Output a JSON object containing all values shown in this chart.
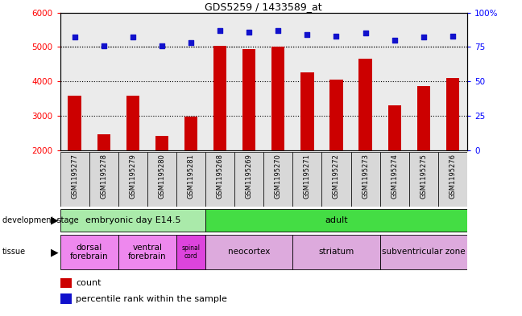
{
  "title": "GDS5259 / 1433589_at",
  "samples": [
    "GSM1195277",
    "GSM1195278",
    "GSM1195279",
    "GSM1195280",
    "GSM1195281",
    "GSM1195268",
    "GSM1195269",
    "GSM1195270",
    "GSM1195271",
    "GSM1195272",
    "GSM1195273",
    "GSM1195274",
    "GSM1195275",
    "GSM1195276"
  ],
  "counts": [
    3580,
    2470,
    3580,
    2420,
    2980,
    5040,
    4940,
    5010,
    4260,
    4060,
    4650,
    3310,
    3870,
    4090
  ],
  "percentiles": [
    82,
    76,
    82,
    76,
    78,
    87,
    86,
    87,
    84,
    83,
    85,
    80,
    82,
    83
  ],
  "bar_color": "#cc0000",
  "dot_color": "#1111cc",
  "ylim_left": [
    2000,
    6000
  ],
  "ylim_right": [
    0,
    100
  ],
  "yticks_left": [
    2000,
    3000,
    4000,
    5000,
    6000
  ],
  "yticks_right": [
    0,
    25,
    50,
    75,
    100
  ],
  "grid_dotted_values": [
    3000,
    4000,
    5000
  ],
  "development_stage_groups": [
    {
      "label": "embryonic day E14.5",
      "start": 0,
      "end": 4,
      "color": "#aaeaaa"
    },
    {
      "label": "adult",
      "start": 5,
      "end": 13,
      "color": "#44dd44"
    }
  ],
  "tissue_groups": [
    {
      "label": "dorsal\nforebrain",
      "start": 0,
      "end": 1,
      "color": "#ee88ee"
    },
    {
      "label": "ventral\nforebrain",
      "start": 2,
      "end": 3,
      "color": "#ee88ee"
    },
    {
      "label": "spinal\ncord",
      "start": 4,
      "end": 4,
      "color": "#dd44dd"
    },
    {
      "label": "neocortex",
      "start": 5,
      "end": 7,
      "color": "#ddaadd"
    },
    {
      "label": "striatum",
      "start": 8,
      "end": 10,
      "color": "#ddaadd"
    },
    {
      "label": "subventricular zone",
      "start": 11,
      "end": 13,
      "color": "#ddaadd"
    }
  ],
  "bar_width": 0.45,
  "col_bg_color": "#d8d8d8",
  "legend_count_color": "#cc0000",
  "legend_percentile_color": "#1111cc"
}
